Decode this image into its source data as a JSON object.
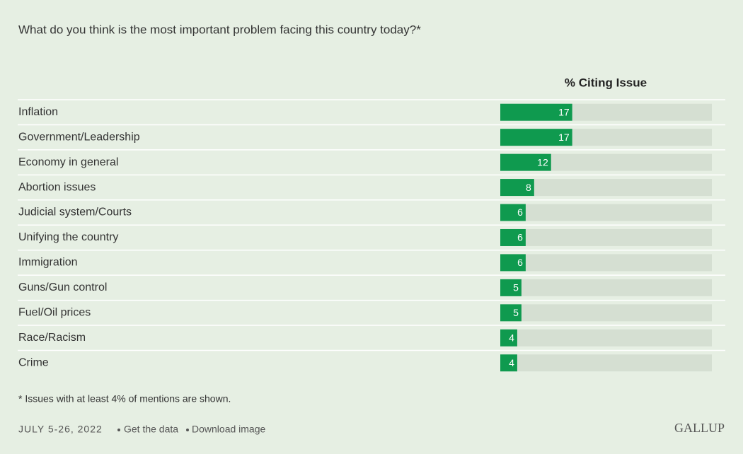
{
  "chart_data": {
    "type": "bar",
    "orientation": "horizontal",
    "title": "What do you think is the most important problem facing this country today?*",
    "value_header": "% Citing Issue",
    "categories": [
      "Inflation",
      "Government/Leadership",
      "Economy in general",
      "Abortion issues",
      "Judicial system/Courts",
      "Unifying the country",
      "Immigration",
      "Guns/Gun control",
      "Fuel/Oil prices",
      "Race/Racism",
      "Crime"
    ],
    "values": [
      17,
      17,
      12,
      8,
      6,
      6,
      6,
      5,
      5,
      4,
      4
    ],
    "color": "#0f9a4f",
    "xlim": [
      0,
      50
    ],
    "footnote": "* Issues with at least 4% of mentions are shown."
  },
  "footer": {
    "date": "JULY 5-26, 2022",
    "links": [
      "Get the data",
      "Download image"
    ],
    "logo": "GALLUP"
  }
}
